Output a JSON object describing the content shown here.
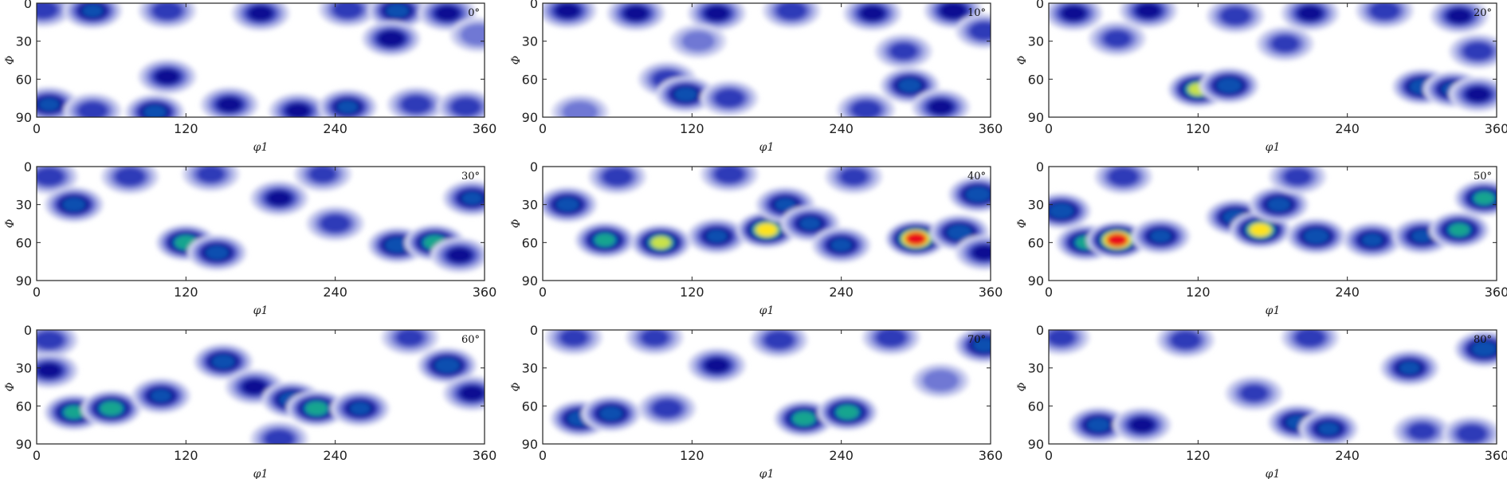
{
  "chart_data": {
    "type": "heatmap",
    "title": "",
    "xlabel": "φ1",
    "ylabel": "Φ",
    "xlim": [
      0,
      360
    ],
    "ylim": [
      0,
      90
    ],
    "y_inverted": true,
    "grid": false,
    "legend": "none",
    "xticks": [
      "0",
      "120",
      "240",
      "360"
    ],
    "yticks": [
      "0",
      "30",
      "60",
      "90"
    ],
    "colormap": [
      "#ffffff",
      "#d6d8f2",
      "#aab0e6",
      "#6f78d4",
      "#2f3ab8",
      "#0b0f92",
      "#0c4fb0",
      "#17a58f",
      "#c9e24a",
      "#ffe21c",
      "#e9101c"
    ],
    "panels": [
      {
        "label": "0°",
        "peaks": [
          {
            "phi1": 5,
            "Phi": 5,
            "intensity": 0.55
          },
          {
            "phi1": 45,
            "Phi": 6,
            "intensity": 0.7
          },
          {
            "phi1": 105,
            "Phi": 6,
            "intensity": 0.55
          },
          {
            "phi1": 180,
            "Phi": 8,
            "intensity": 0.6
          },
          {
            "phi1": 250,
            "Phi": 5,
            "intensity": 0.55
          },
          {
            "phi1": 290,
            "Phi": 6,
            "intensity": 0.75
          },
          {
            "phi1": 330,
            "Phi": 8,
            "intensity": 0.6
          },
          {
            "phi1": 355,
            "Phi": 25,
            "intensity": 0.45
          },
          {
            "phi1": 285,
            "Phi": 28,
            "intensity": 0.65
          },
          {
            "phi1": 105,
            "Phi": 58,
            "intensity": 0.6
          },
          {
            "phi1": 10,
            "Phi": 80,
            "intensity": 0.7
          },
          {
            "phi1": 45,
            "Phi": 85,
            "intensity": 0.55
          },
          {
            "phi1": 95,
            "Phi": 86,
            "intensity": 0.75
          },
          {
            "phi1": 155,
            "Phi": 80,
            "intensity": 0.6
          },
          {
            "phi1": 210,
            "Phi": 85,
            "intensity": 0.6
          },
          {
            "phi1": 250,
            "Phi": 82,
            "intensity": 0.7
          },
          {
            "phi1": 305,
            "Phi": 80,
            "intensity": 0.55
          },
          {
            "phi1": 345,
            "Phi": 82,
            "intensity": 0.55
          }
        ]
      },
      {
        "label": "10°",
        "peaks": [
          {
            "phi1": 20,
            "Phi": 6,
            "intensity": 0.6
          },
          {
            "phi1": 75,
            "Phi": 8,
            "intensity": 0.6
          },
          {
            "phi1": 140,
            "Phi": 8,
            "intensity": 0.6
          },
          {
            "phi1": 200,
            "Phi": 6,
            "intensity": 0.55
          },
          {
            "phi1": 265,
            "Phi": 8,
            "intensity": 0.6
          },
          {
            "phi1": 330,
            "Phi": 6,
            "intensity": 0.65
          },
          {
            "phi1": 355,
            "Phi": 22,
            "intensity": 0.55
          },
          {
            "phi1": 290,
            "Phi": 38,
            "intensity": 0.5
          },
          {
            "phi1": 125,
            "Phi": 30,
            "intensity": 0.4
          },
          {
            "phi1": 100,
            "Phi": 60,
            "intensity": 0.55
          },
          {
            "phi1": 115,
            "Phi": 72,
            "intensity": 0.75
          },
          {
            "phi1": 150,
            "Phi": 75,
            "intensity": 0.55
          },
          {
            "phi1": 295,
            "Phi": 65,
            "intensity": 0.75
          },
          {
            "phi1": 320,
            "Phi": 82,
            "intensity": 0.6
          },
          {
            "phi1": 260,
            "Phi": 84,
            "intensity": 0.55
          },
          {
            "phi1": 30,
            "Phi": 86,
            "intensity": 0.45
          }
        ]
      },
      {
        "label": "20°",
        "peaks": [
          {
            "phi1": 20,
            "Phi": 8,
            "intensity": 0.6
          },
          {
            "phi1": 80,
            "Phi": 6,
            "intensity": 0.6
          },
          {
            "phi1": 150,
            "Phi": 10,
            "intensity": 0.55
          },
          {
            "phi1": 210,
            "Phi": 8,
            "intensity": 0.6
          },
          {
            "phi1": 270,
            "Phi": 6,
            "intensity": 0.55
          },
          {
            "phi1": 330,
            "Phi": 10,
            "intensity": 0.6
          },
          {
            "phi1": 55,
            "Phi": 28,
            "intensity": 0.5
          },
          {
            "phi1": 190,
            "Phi": 32,
            "intensity": 0.5
          },
          {
            "phi1": 345,
            "Phi": 38,
            "intensity": 0.55
          },
          {
            "phi1": 120,
            "Phi": 68,
            "intensity": 0.95
          },
          {
            "phi1": 145,
            "Phi": 65,
            "intensity": 0.8
          },
          {
            "phi1": 300,
            "Phi": 66,
            "intensity": 0.8
          },
          {
            "phi1": 325,
            "Phi": 68,
            "intensity": 0.75
          },
          {
            "phi1": 345,
            "Phi": 72,
            "intensity": 0.6
          }
        ]
      },
      {
        "label": "30°",
        "peaks": [
          {
            "phi1": 10,
            "Phi": 8,
            "intensity": 0.55
          },
          {
            "phi1": 75,
            "Phi": 8,
            "intensity": 0.55
          },
          {
            "phi1": 140,
            "Phi": 6,
            "intensity": 0.5
          },
          {
            "phi1": 230,
            "Phi": 6,
            "intensity": 0.5
          },
          {
            "phi1": 30,
            "Phi": 30,
            "intensity": 0.75
          },
          {
            "phi1": 195,
            "Phi": 25,
            "intensity": 0.6
          },
          {
            "phi1": 240,
            "Phi": 45,
            "intensity": 0.55
          },
          {
            "phi1": 350,
            "Phi": 25,
            "intensity": 0.7
          },
          {
            "phi1": 120,
            "Phi": 60,
            "intensity": 0.9
          },
          {
            "phi1": 145,
            "Phi": 68,
            "intensity": 0.75
          },
          {
            "phi1": 290,
            "Phi": 62,
            "intensity": 0.8
          },
          {
            "phi1": 320,
            "Phi": 60,
            "intensity": 0.9
          },
          {
            "phi1": 340,
            "Phi": 70,
            "intensity": 0.6
          }
        ]
      },
      {
        "label": "40°",
        "peaks": [
          {
            "phi1": 20,
            "Phi": 30,
            "intensity": 0.75
          },
          {
            "phi1": 50,
            "Phi": 58,
            "intensity": 0.85
          },
          {
            "phi1": 95,
            "Phi": 60,
            "intensity": 0.95
          },
          {
            "phi1": 140,
            "Phi": 55,
            "intensity": 0.7
          },
          {
            "phi1": 180,
            "Phi": 50,
            "intensity": 1.05
          },
          {
            "phi1": 195,
            "Phi": 30,
            "intensity": 0.7
          },
          {
            "phi1": 215,
            "Phi": 45,
            "intensity": 0.7
          },
          {
            "phi1": 240,
            "Phi": 62,
            "intensity": 0.7
          },
          {
            "phi1": 300,
            "Phi": 57,
            "intensity": 1.25
          },
          {
            "phi1": 335,
            "Phi": 52,
            "intensity": 0.8
          },
          {
            "phi1": 350,
            "Phi": 22,
            "intensity": 0.8
          },
          {
            "phi1": 355,
            "Phi": 68,
            "intensity": 0.6
          },
          {
            "phi1": 60,
            "Phi": 8,
            "intensity": 0.55
          },
          {
            "phi1": 150,
            "Phi": 6,
            "intensity": 0.55
          },
          {
            "phi1": 250,
            "Phi": 8,
            "intensity": 0.5
          }
        ]
      },
      {
        "label": "50°",
        "peaks": [
          {
            "phi1": 10,
            "Phi": 35,
            "intensity": 0.8
          },
          {
            "phi1": 30,
            "Phi": 60,
            "intensity": 0.85
          },
          {
            "phi1": 55,
            "Phi": 58,
            "intensity": 1.25
          },
          {
            "phi1": 90,
            "Phi": 55,
            "intensity": 0.7
          },
          {
            "phi1": 150,
            "Phi": 40,
            "intensity": 0.8
          },
          {
            "phi1": 170,
            "Phi": 50,
            "intensity": 1.05
          },
          {
            "phi1": 185,
            "Phi": 30,
            "intensity": 0.75
          },
          {
            "phi1": 215,
            "Phi": 55,
            "intensity": 0.8
          },
          {
            "phi1": 260,
            "Phi": 58,
            "intensity": 0.7
          },
          {
            "phi1": 300,
            "Phi": 55,
            "intensity": 0.7
          },
          {
            "phi1": 330,
            "Phi": 50,
            "intensity": 0.85
          },
          {
            "phi1": 350,
            "Phi": 25,
            "intensity": 0.85
          },
          {
            "phi1": 60,
            "Phi": 8,
            "intensity": 0.55
          },
          {
            "phi1": 200,
            "Phi": 8,
            "intensity": 0.5
          }
        ]
      },
      {
        "label": "60°",
        "peaks": [
          {
            "phi1": 10,
            "Phi": 8,
            "intensity": 0.55
          },
          {
            "phi1": 10,
            "Phi": 32,
            "intensity": 0.6
          },
          {
            "phi1": 30,
            "Phi": 65,
            "intensity": 0.85
          },
          {
            "phi1": 60,
            "Phi": 62,
            "intensity": 0.9
          },
          {
            "phi1": 100,
            "Phi": 52,
            "intensity": 0.7
          },
          {
            "phi1": 150,
            "Phi": 25,
            "intensity": 0.75
          },
          {
            "phi1": 175,
            "Phi": 45,
            "intensity": 0.6
          },
          {
            "phi1": 205,
            "Phi": 55,
            "intensity": 0.8
          },
          {
            "phi1": 225,
            "Phi": 62,
            "intensity": 0.9
          },
          {
            "phi1": 260,
            "Phi": 62,
            "intensity": 0.7
          },
          {
            "phi1": 330,
            "Phi": 28,
            "intensity": 0.8
          },
          {
            "phi1": 350,
            "Phi": 50,
            "intensity": 0.6
          },
          {
            "phi1": 195,
            "Phi": 86,
            "intensity": 0.55
          },
          {
            "phi1": 300,
            "Phi": 6,
            "intensity": 0.5
          }
        ]
      },
      {
        "label": "70°",
        "peaks": [
          {
            "phi1": 25,
            "Phi": 6,
            "intensity": 0.5
          },
          {
            "phi1": 90,
            "Phi": 6,
            "intensity": 0.5
          },
          {
            "phi1": 190,
            "Phi": 8,
            "intensity": 0.55
          },
          {
            "phi1": 280,
            "Phi": 6,
            "intensity": 0.55
          },
          {
            "phi1": 355,
            "Phi": 12,
            "intensity": 0.75
          },
          {
            "phi1": 140,
            "Phi": 28,
            "intensity": 0.6
          },
          {
            "phi1": 30,
            "Phi": 70,
            "intensity": 0.8
          },
          {
            "phi1": 55,
            "Phi": 66,
            "intensity": 0.75
          },
          {
            "phi1": 100,
            "Phi": 62,
            "intensity": 0.55
          },
          {
            "phi1": 210,
            "Phi": 70,
            "intensity": 0.9
          },
          {
            "phi1": 245,
            "Phi": 65,
            "intensity": 0.9
          },
          {
            "phi1": 320,
            "Phi": 40,
            "intensity": 0.45
          }
        ]
      },
      {
        "label": "80°",
        "peaks": [
          {
            "phi1": 10,
            "Phi": 6,
            "intensity": 0.5
          },
          {
            "phi1": 110,
            "Phi": 8,
            "intensity": 0.55
          },
          {
            "phi1": 210,
            "Phi": 6,
            "intensity": 0.55
          },
          {
            "phi1": 350,
            "Phi": 15,
            "intensity": 0.8
          },
          {
            "phi1": 290,
            "Phi": 30,
            "intensity": 0.7
          },
          {
            "phi1": 165,
            "Phi": 50,
            "intensity": 0.5
          },
          {
            "phi1": 40,
            "Phi": 75,
            "intensity": 0.75
          },
          {
            "phi1": 75,
            "Phi": 75,
            "intensity": 0.6
          },
          {
            "phi1": 200,
            "Phi": 73,
            "intensity": 0.75
          },
          {
            "phi1": 225,
            "Phi": 78,
            "intensity": 0.7
          },
          {
            "phi1": 300,
            "Phi": 80,
            "intensity": 0.5
          },
          {
            "phi1": 340,
            "Phi": 82,
            "intensity": 0.55
          }
        ]
      }
    ]
  }
}
